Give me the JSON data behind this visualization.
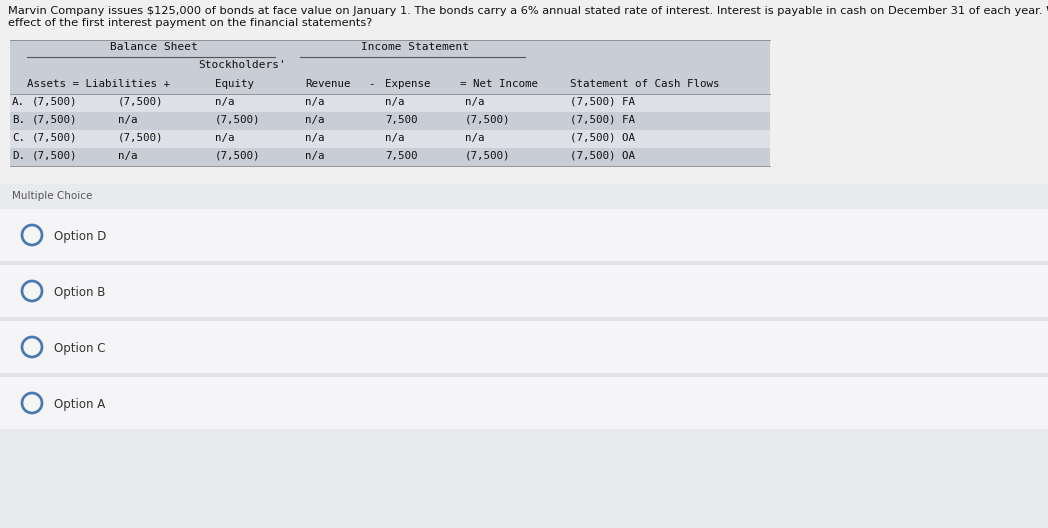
{
  "question_line1": "Marvin Company issues $125,000 of bonds at face value on January 1. The bonds carry a 6% annual stated rate of interest. Interest is payable in cash on December 31 of each year. Which of the following shows the",
  "question_line2": "effect of the first interest payment on the financial statements?",
  "question_fontsize": 8.2,
  "bg_color": "#f0f0f0",
  "table_header1": "Balance Sheet",
  "table_header2": "Income Statement",
  "table_top_bg": "#c8cdd6",
  "table_row_odd": "#dde0e6",
  "table_row_even": "#c8cdd6",
  "table_header_row_bg": "#c8cdd6",
  "rows": [
    [
      "A.",
      "(7,500)",
      "(7,500)",
      "n/a",
      "n/a",
      "n/a",
      "n/a",
      "(7,500) FA"
    ],
    [
      "B.",
      "(7,500)",
      "n/a",
      "(7,500)",
      "n/a",
      "7,500",
      "(7,500)",
      "(7,500) FA"
    ],
    [
      "C.",
      "(7,500)",
      "(7,500)",
      "n/a",
      "n/a",
      "n/a",
      "n/a",
      "(7,500) OA"
    ],
    [
      "D.",
      "(7,500)",
      "n/a",
      "(7,500)",
      "n/a",
      "7,500",
      "(7,500)",
      "(7,500) OA"
    ]
  ],
  "multiple_choice_label": "Multiple Choice",
  "mc_bg": "#e8eaed",
  "options": [
    "Option D",
    "Option B",
    "Option C",
    "Option A"
  ],
  "option_row_bg": "#f5f5f7",
  "option_sep_bg": "#e0e2e5",
  "circle_color": "#4a7ab5",
  "text_dark": "#333333",
  "font_mono": "DejaVu Sans Mono",
  "font_sans": "DejaVu Sans"
}
